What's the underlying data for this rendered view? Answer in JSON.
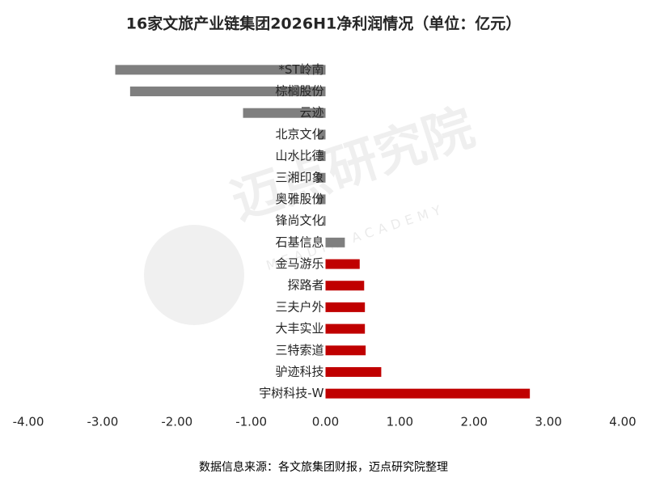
{
  "chart_data": {
    "type": "hbar",
    "title": "16家文旅产业链集团2026H1净利润情况（单位：亿元）",
    "source": "数据信息来源：各文旅集团财报，迈点研究院整理",
    "watermark": "迈点研究院",
    "watermark_sub": "MEADIN ACADEMY",
    "categories": [
      "*ST岭南",
      "棕榈股份",
      "云迹",
      "北京文化",
      "山水比德",
      "三湘印象",
      "奥雅股份",
      "锋尚文化",
      "石基信息",
      "金马游乐",
      "探路者",
      "三夫户外",
      "大丰实业",
      "三特索道",
      "驴迹科技",
      "宇树科技-W"
    ],
    "values": [
      -2.83,
      -2.63,
      -1.11,
      -0.09,
      -0.1,
      -0.12,
      -0.11,
      -0.03,
      0.26,
      0.46,
      0.52,
      0.53,
      0.53,
      0.54,
      0.75,
      2.75
    ],
    "colors": [
      "#7f7f7f",
      "#7f7f7f",
      "#7f7f7f",
      "#7f7f7f",
      "#7f7f7f",
      "#7f7f7f",
      "#7f7f7f",
      "#7f7f7f",
      "#7f7f7f",
      "#c00000",
      "#c00000",
      "#c00000",
      "#c00000",
      "#c00000",
      "#c00000",
      "#c00000"
    ],
    "xlim": [
      -4,
      4
    ],
    "xticks": [
      {
        "value": -4,
        "label": "-4.00"
      },
      {
        "value": -3,
        "label": "-3.00"
      },
      {
        "value": -2,
        "label": "-2.00"
      },
      {
        "value": -1,
        "label": "-1.00"
      },
      {
        "value": 0,
        "label": "0.00"
      },
      {
        "value": 1,
        "label": "1.00"
      },
      {
        "value": 2,
        "label": "2.00"
      },
      {
        "value": 3,
        "label": "3.00"
      },
      {
        "value": 4,
        "label": "4.00"
      }
    ],
    "grid": false
  }
}
